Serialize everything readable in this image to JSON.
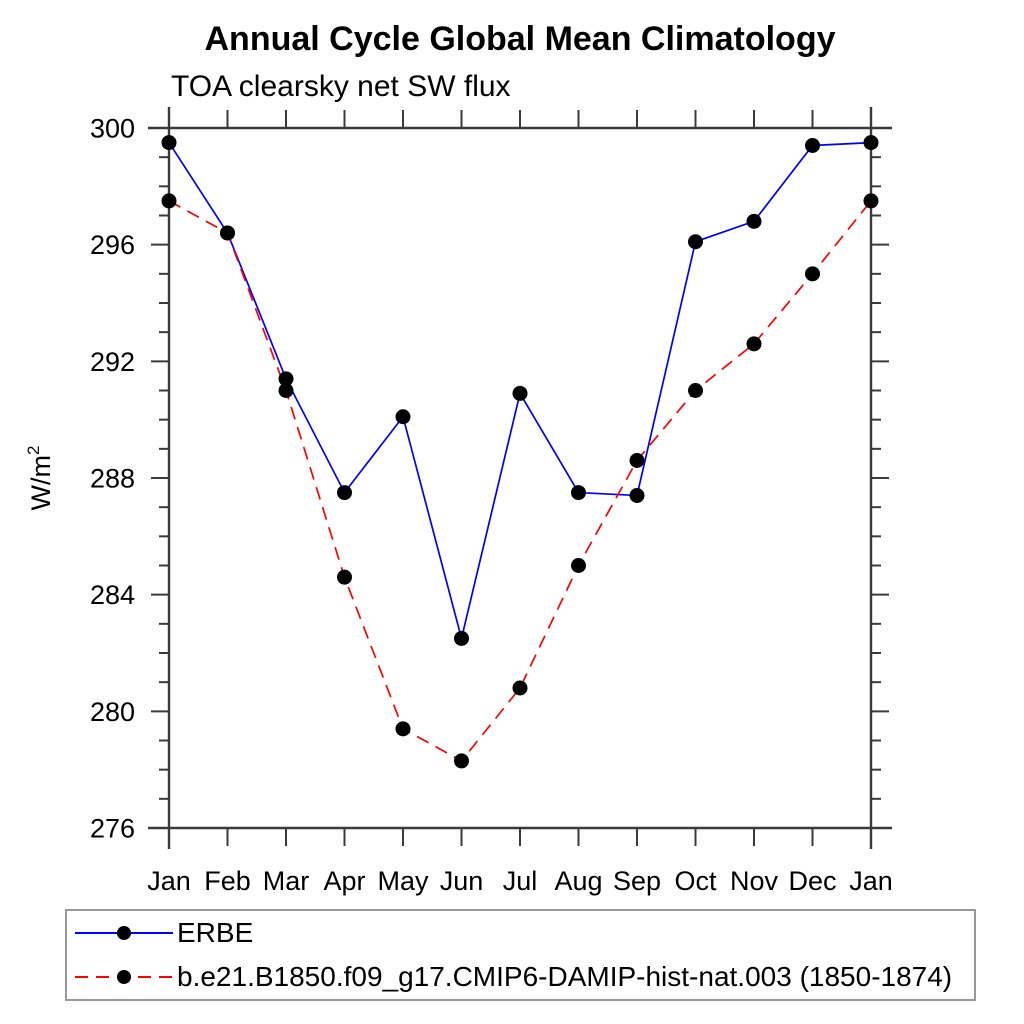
{
  "title": "Annual Cycle Global Mean Climatology",
  "subtitle": "TOA clearsky net SW flux",
  "chart_data": {
    "type": "line",
    "categories": [
      "Jan",
      "Feb",
      "Mar",
      "Apr",
      "May",
      "Jun",
      "Jul",
      "Aug",
      "Sep",
      "Oct",
      "Nov",
      "Dec",
      "Jan"
    ],
    "ylabel": "W/m²",
    "ylabel_base": "W/m",
    "ylabel_sup": "2",
    "ylim": [
      276,
      300
    ],
    "yticks_major": [
      276,
      280,
      284,
      288,
      292,
      296,
      300
    ],
    "ytick_minor_step": 1,
    "grid": false,
    "legend_position": "bottom-left",
    "series": [
      {
        "name": "ERBE",
        "color": "#0000ff",
        "line_style": "solid",
        "marker": "circle",
        "marker_color": "#000000",
        "values": [
          299.5,
          296.4,
          291.4,
          287.5,
          290.1,
          282.5,
          290.9,
          287.5,
          287.4,
          296.1,
          296.8,
          299.4,
          299.5
        ]
      },
      {
        "name": "b.e21.B1850.f09_g17.CMIP6-DAMIP-hist-nat.003 (1850-1874)",
        "color": "#ff0000",
        "line_style": "dashed",
        "marker": "circle",
        "marker_color": "#000000",
        "values": [
          297.5,
          296.4,
          291.0,
          284.6,
          279.4,
          278.3,
          280.8,
          285.0,
          288.6,
          291.0,
          292.6,
          295.0,
          297.5
        ]
      }
    ]
  },
  "colors": {
    "background": "#ffffff",
    "axis": "#3a3a3a",
    "text": "#000000",
    "legend_border": "#999999"
  }
}
